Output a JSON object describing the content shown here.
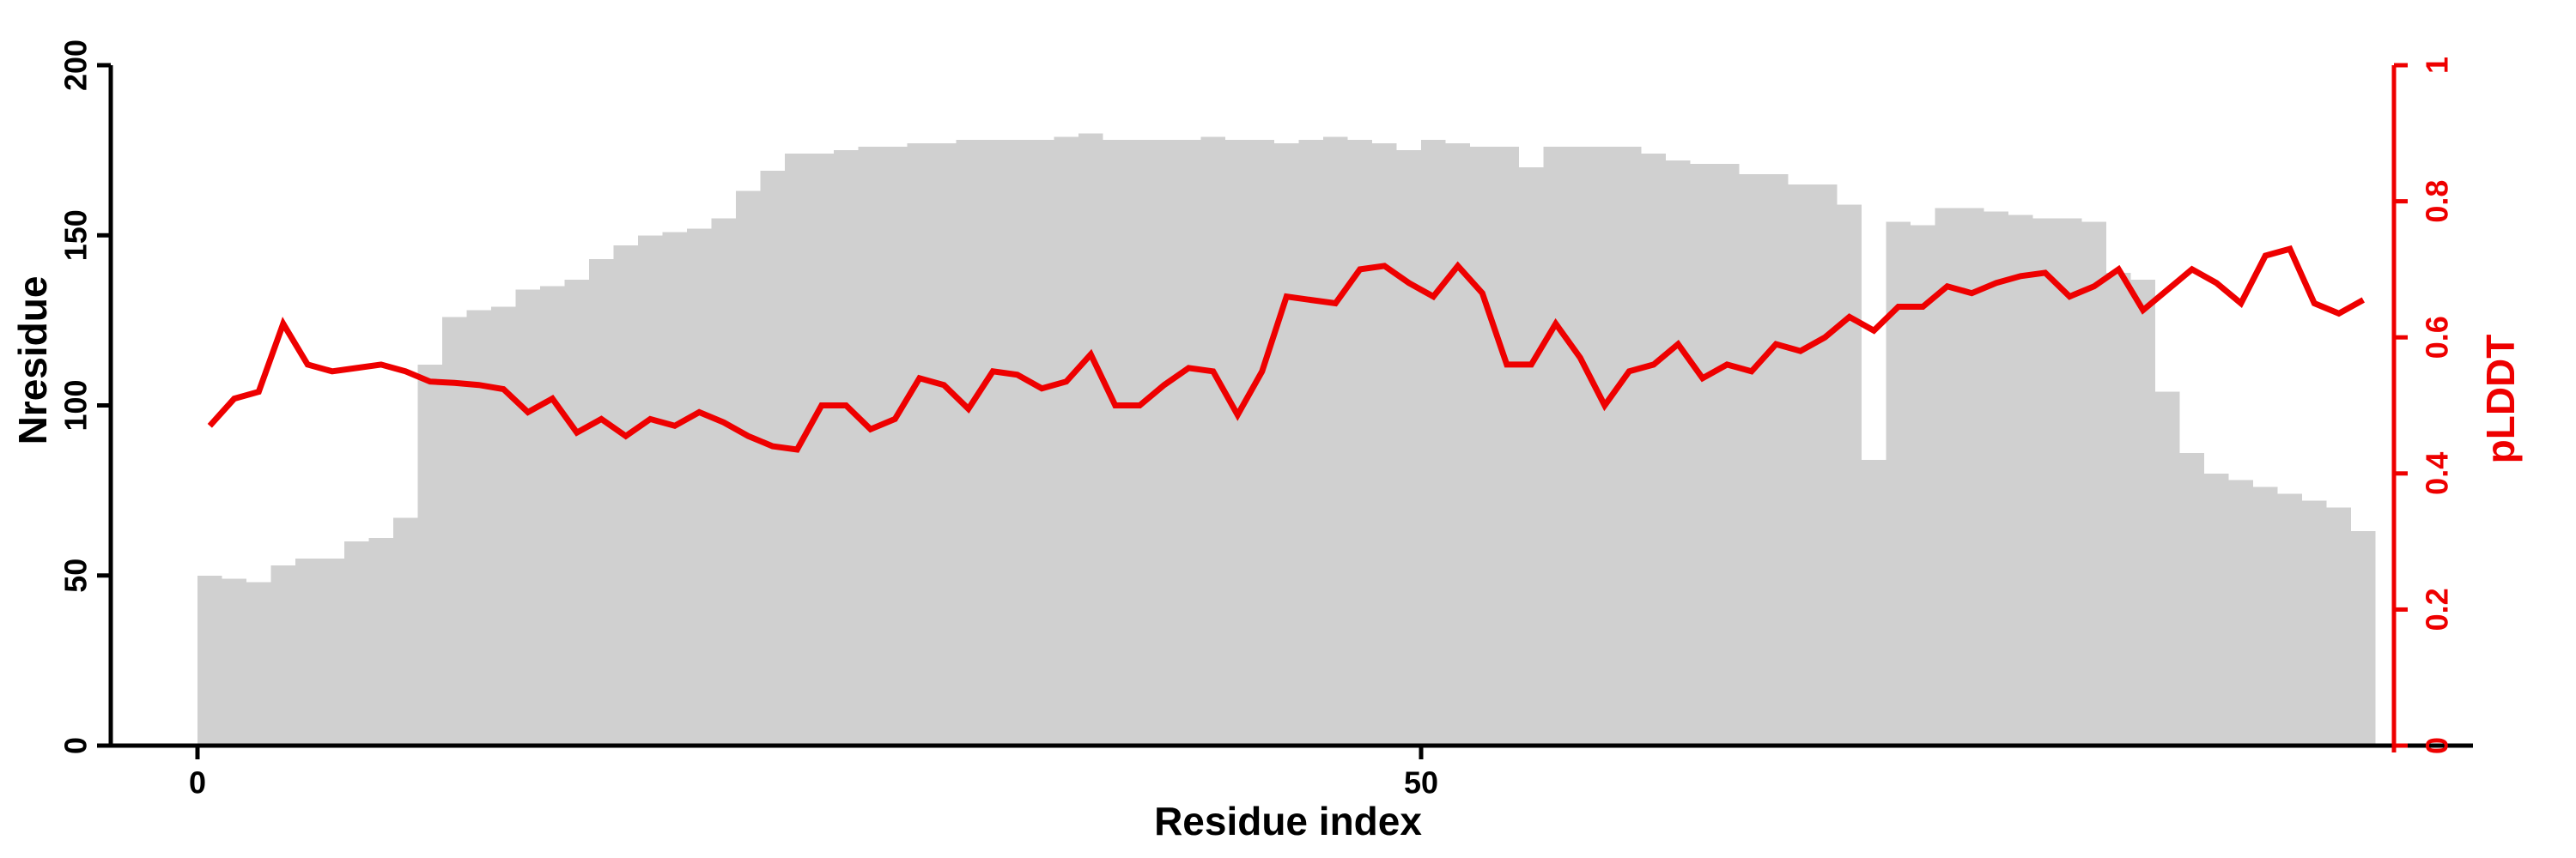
{
  "chart_data": {
    "type": "bar",
    "title": "",
    "xlabel": "Residue index",
    "ylabel_left": "Nresidue",
    "ylabel_right": "pLDDT",
    "x_axis": {
      "tick_values": [
        0,
        50
      ],
      "tick_labels": [
        "0",
        "50"
      ]
    },
    "y_axis_left": {
      "range": [
        0,
        200
      ],
      "tick_values": [
        0,
        50,
        100,
        150,
        200
      ],
      "tick_labels": [
        "0",
        "50",
        "100",
        "150",
        "200"
      ]
    },
    "y_axis_right": {
      "range": [
        0,
        1
      ],
      "tick_values": [
        0,
        0.2,
        0.4,
        0.6,
        0.8,
        1
      ],
      "tick_labels": [
        "0",
        "0.2",
        "0.4",
        "0.6",
        "0.8",
        "1"
      ]
    },
    "grid": false,
    "legend": "none",
    "residue_start": 0,
    "n_bars": 89,
    "series": [
      {
        "name": "Nresidue",
        "type": "bar",
        "axis": "left",
        "values": [
          50,
          49,
          48,
          53,
          55,
          55,
          60,
          61,
          67,
          112,
          126,
          128,
          129,
          134,
          135,
          137,
          143,
          147,
          150,
          151,
          152,
          155,
          163,
          169,
          174,
          174,
          175,
          176,
          176,
          177,
          177,
          178,
          178,
          178,
          178,
          179,
          180,
          178,
          178,
          178,
          178,
          179,
          178,
          178,
          177,
          178,
          179,
          178,
          177,
          175,
          178,
          177,
          176,
          176,
          170,
          176,
          176,
          176,
          176,
          174,
          172,
          171,
          171,
          168,
          168,
          165,
          165,
          159,
          84,
          154,
          153,
          158,
          158,
          157,
          156,
          155,
          155,
          154,
          139,
          137,
          104,
          86,
          80,
          78,
          76,
          74,
          72,
          70,
          63
        ]
      },
      {
        "name": "pLDDT",
        "type": "line",
        "axis": "right",
        "values": [
          0.47,
          0.51,
          0.52,
          0.62,
          0.56,
          0.55,
          0.555,
          0.56,
          0.55,
          0.535,
          0.533,
          0.53,
          0.524,
          0.49,
          0.51,
          0.46,
          0.48,
          0.455,
          0.48,
          0.47,
          0.49,
          0.475,
          0.455,
          0.44,
          0.435,
          0.5,
          0.5,
          0.465,
          0.48,
          0.54,
          0.53,
          0.495,
          0.55,
          0.545,
          0.525,
          0.535,
          0.575,
          0.5,
          0.5,
          0.53,
          0.555,
          0.55,
          0.486,
          0.55,
          0.66,
          0.655,
          0.65,
          0.7,
          0.705,
          0.68,
          0.66,
          0.705,
          0.665,
          0.56,
          0.56,
          0.62,
          0.57,
          0.5,
          0.55,
          0.56,
          0.59,
          0.54,
          0.56,
          0.55,
          0.59,
          0.58,
          0.6,
          0.63,
          0.61,
          0.645,
          0.645,
          0.675,
          0.665,
          0.68,
          0.69,
          0.695,
          0.66,
          0.675,
          0.7,
          0.64,
          0.67,
          0.7,
          0.68,
          0.65,
          0.72,
          0.73,
          0.65,
          0.635,
          0.655
        ]
      }
    ],
    "colors": {
      "bar_fill": "#d0d0d0",
      "line": "#ee0000",
      "left_axis": "#000000",
      "right_axis": "#ee0000",
      "background": "#ffffff"
    }
  }
}
